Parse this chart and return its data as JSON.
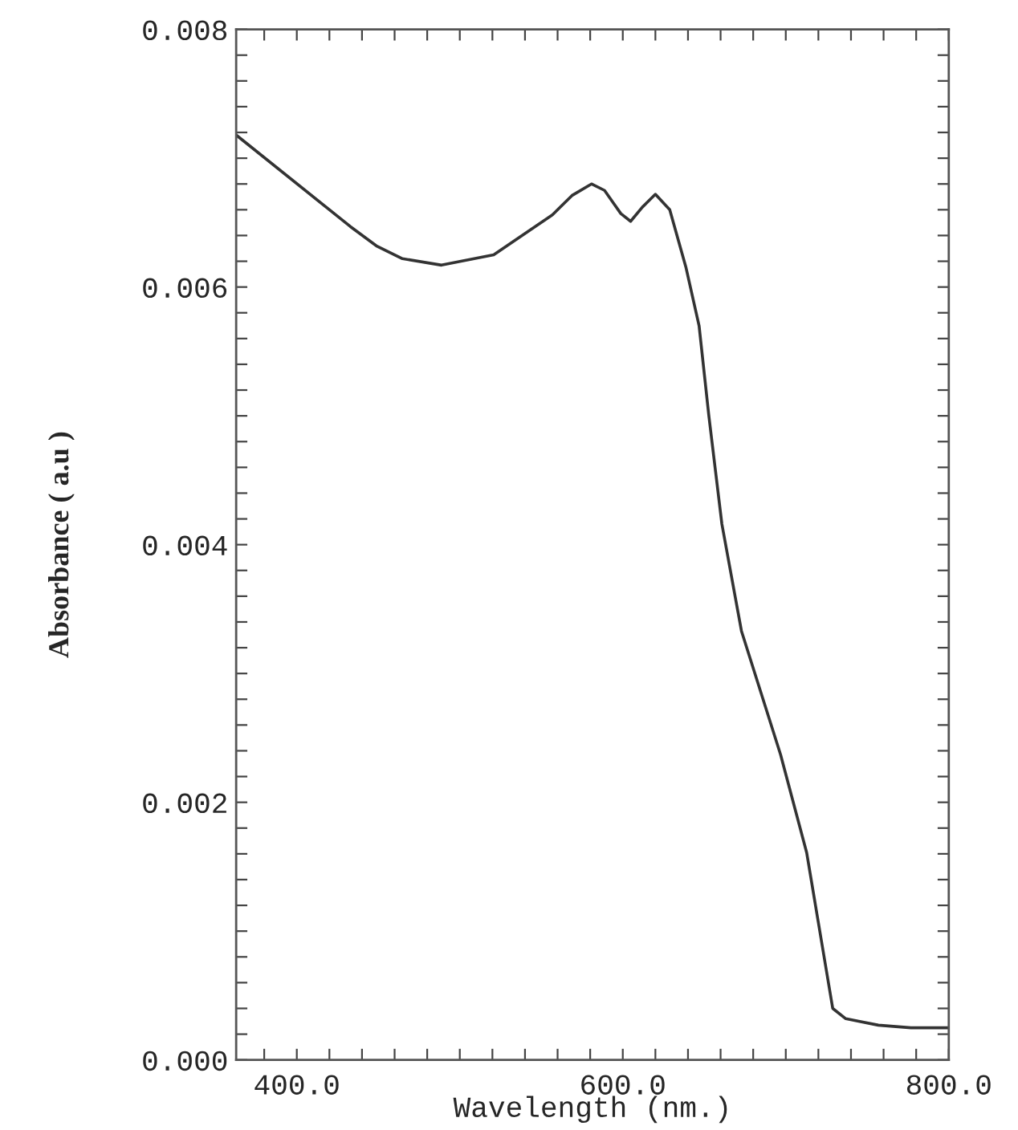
{
  "chart_data": {
    "type": "line",
    "xlabel": "Wavelength (nm.)",
    "ylabel": "Absorbance ( a.u )",
    "xlim": [
      362.8,
      800
    ],
    "ylim": [
      0,
      0.008
    ],
    "xticks": [
      {
        "value": 380,
        "label": null
      },
      {
        "value": 400,
        "label": "400.0"
      },
      {
        "value": 420,
        "label": null
      },
      {
        "value": 440,
        "label": null
      },
      {
        "value": 460,
        "label": null
      },
      {
        "value": 480,
        "label": null
      },
      {
        "value": 500,
        "label": null
      },
      {
        "value": 520,
        "label": null
      },
      {
        "value": 540,
        "label": null
      },
      {
        "value": 560,
        "label": null
      },
      {
        "value": 580,
        "label": null
      },
      {
        "value": 600,
        "label": "600.0"
      },
      {
        "value": 620,
        "label": null
      },
      {
        "value": 640,
        "label": null
      },
      {
        "value": 660,
        "label": null
      },
      {
        "value": 680,
        "label": null
      },
      {
        "value": 700,
        "label": null
      },
      {
        "value": 720,
        "label": null
      },
      {
        "value": 740,
        "label": null
      },
      {
        "value": 760,
        "label": null
      },
      {
        "value": 780,
        "label": null
      },
      {
        "value": 800,
        "label": "800.0"
      }
    ],
    "yticks": [
      {
        "value": 0,
        "label": "0.000"
      },
      {
        "value": 0.0002,
        "label": null
      },
      {
        "value": 0.0004,
        "label": null
      },
      {
        "value": 0.0006,
        "label": null
      },
      {
        "value": 0.0008,
        "label": null
      },
      {
        "value": 0.001,
        "label": null
      },
      {
        "value": 0.0012,
        "label": null
      },
      {
        "value": 0.0014,
        "label": null
      },
      {
        "value": 0.0016,
        "label": null
      },
      {
        "value": 0.0018,
        "label": null
      },
      {
        "value": 0.002,
        "label": "0.002"
      },
      {
        "value": 0.0022,
        "label": null
      },
      {
        "value": 0.0024,
        "label": null
      },
      {
        "value": 0.0026,
        "label": null
      },
      {
        "value": 0.0028,
        "label": null
      },
      {
        "value": 0.003,
        "label": null
      },
      {
        "value": 0.0032,
        "label": null
      },
      {
        "value": 0.0034,
        "label": null
      },
      {
        "value": 0.0036,
        "label": null
      },
      {
        "value": 0.0038,
        "label": null
      },
      {
        "value": 0.004,
        "label": "0.004"
      },
      {
        "value": 0.0042,
        "label": null
      },
      {
        "value": 0.0044,
        "label": null
      },
      {
        "value": 0.0046,
        "label": null
      },
      {
        "value": 0.0048,
        "label": null
      },
      {
        "value": 0.005,
        "label": null
      },
      {
        "value": 0.0052,
        "label": null
      },
      {
        "value": 0.0054,
        "label": null
      },
      {
        "value": 0.0056,
        "label": null
      },
      {
        "value": 0.0058,
        "label": null
      },
      {
        "value": 0.006,
        "label": "0.006"
      },
      {
        "value": 0.0062,
        "label": null
      },
      {
        "value": 0.0064,
        "label": null
      },
      {
        "value": 0.0066,
        "label": null
      },
      {
        "value": 0.0068,
        "label": null
      },
      {
        "value": 0.007,
        "label": null
      },
      {
        "value": 0.0072,
        "label": null
      },
      {
        "value": 0.0074,
        "label": null
      },
      {
        "value": 0.0076,
        "label": null
      },
      {
        "value": 0.0078,
        "label": null
      },
      {
        "value": 0.008,
        "label": "0.008"
      }
    ],
    "grid": false,
    "marker": "none",
    "line_style": "solid",
    "series": [
      {
        "color": "#333333",
        "x": [
          362.8,
          432.8,
          448.8,
          464.8,
          488.8,
          520.8,
          556.8,
          568.8,
          580.8,
          588.8,
          598.8,
          604.8,
          612,
          620,
          628.8,
          638.8,
          646.8,
          652.8,
          660.8,
          672.8,
          696.8,
          712.8,
          728.8,
          736.8,
          756.8,
          776.8,
          800
        ],
        "values": [
          0.00718,
          0.00647,
          0.00632,
          0.00622,
          0.00617,
          0.00625,
          0.00656,
          0.00671,
          0.0068,
          0.00675,
          0.00657,
          0.00651,
          0.00662,
          0.00672,
          0.0066,
          0.00615,
          0.0057,
          0.005,
          0.00416,
          0.00333,
          0.00237,
          0.00161,
          0.0004,
          0.00032,
          0.00027,
          0.00025,
          0.00025
        ]
      }
    ]
  }
}
